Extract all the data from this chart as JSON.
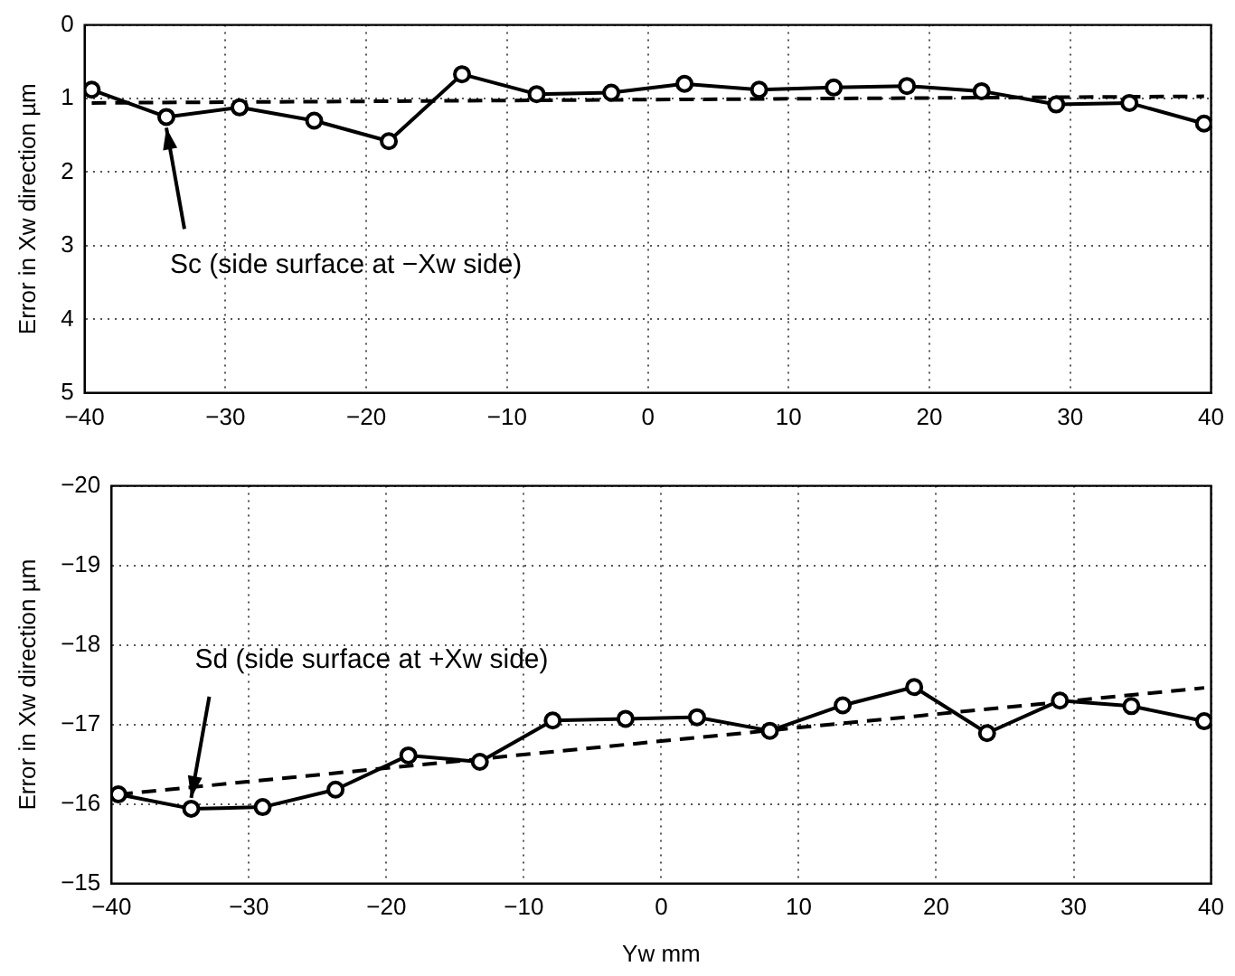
{
  "chart_data": [
    {
      "type": "line",
      "ylabel": "Error in Xw direction µm",
      "xlim": [
        -40,
        40
      ],
      "ylim": [
        5,
        0
      ],
      "xticks": [
        {
          "value": -40,
          "label": "−40"
        },
        {
          "value": -30,
          "label": "−30"
        },
        {
          "value": -20,
          "label": "−20"
        },
        {
          "value": -10,
          "label": "−10"
        },
        0,
        10,
        20,
        30,
        40
      ],
      "yticks": [
        0,
        1,
        2,
        3,
        4,
        5
      ],
      "grid": true,
      "legend": false,
      "annotations": [
        {
          "text": "Sc (side surface at −Xw side)",
          "x": -34.2,
          "y": 1.25
        }
      ],
      "series": [
        {
          "color": "#000000",
          "marker": "circle",
          "line_style": "solid",
          "x": [
            -39.5,
            -34.2,
            -29,
            -23.7,
            -18.4,
            -13.2,
            -7.9,
            -2.6,
            2.6,
            7.9,
            13.2,
            18.4,
            23.7,
            29,
            34.2,
            39.5
          ],
          "values": [
            0.88,
            1.25,
            1.12,
            1.3,
            1.58,
            0.67,
            0.94,
            0.92,
            0.8,
            0.88,
            0.85,
            0.83,
            0.9,
            1.08,
            1.06,
            1.34
          ]
        },
        {
          "color": "#000000",
          "marker": "none",
          "line_style": "dashed",
          "x": [
            -39.5,
            39.5
          ],
          "values": [
            1.06,
            0.97
          ]
        }
      ]
    },
    {
      "type": "line",
      "xlabel": "Yw mm",
      "ylabel": "Error in Xw direction µm",
      "xlim": [
        -40,
        40
      ],
      "ylim": [
        -15,
        -20
      ],
      "xticks": [
        {
          "value": -40,
          "label": "−40"
        },
        {
          "value": -30,
          "label": "−30"
        },
        {
          "value": -20,
          "label": "−20"
        },
        {
          "value": -10,
          "label": "−10"
        },
        0,
        10,
        20,
        30,
        40
      ],
      "yticks": [
        {
          "value": -20,
          "label": "−20"
        },
        {
          "value": -19,
          "label": "−19"
        },
        {
          "value": -18,
          "label": "−18"
        },
        {
          "value": -17,
          "label": "−17"
        },
        {
          "value": -16,
          "label": "−16"
        },
        {
          "value": -15,
          "label": "−15"
        }
      ],
      "grid": true,
      "legend": false,
      "annotations": [
        {
          "text": "Sd (side surface at +Xw side)",
          "x": -34.2,
          "y": -15.94
        }
      ],
      "series": [
        {
          "color": "#000000",
          "marker": "circle",
          "line_style": "solid",
          "x": [
            -39.5,
            -34.2,
            -29,
            -23.7,
            -18.4,
            -13.2,
            -7.9,
            -2.6,
            2.6,
            7.9,
            13.2,
            18.4,
            23.7,
            29,
            34.2,
            39.5
          ],
          "values": [
            -16.12,
            -15.94,
            -15.96,
            -16.18,
            -16.61,
            -16.53,
            -17.05,
            -17.07,
            -17.09,
            -16.92,
            -17.24,
            -17.47,
            -16.89,
            -17.3,
            -17.23,
            -17.04
          ]
        },
        {
          "color": "#000000",
          "marker": "none",
          "line_style": "dashed",
          "x": [
            -39.5,
            39.5
          ],
          "values": [
            -16.12,
            -17.46
          ]
        }
      ]
    }
  ]
}
